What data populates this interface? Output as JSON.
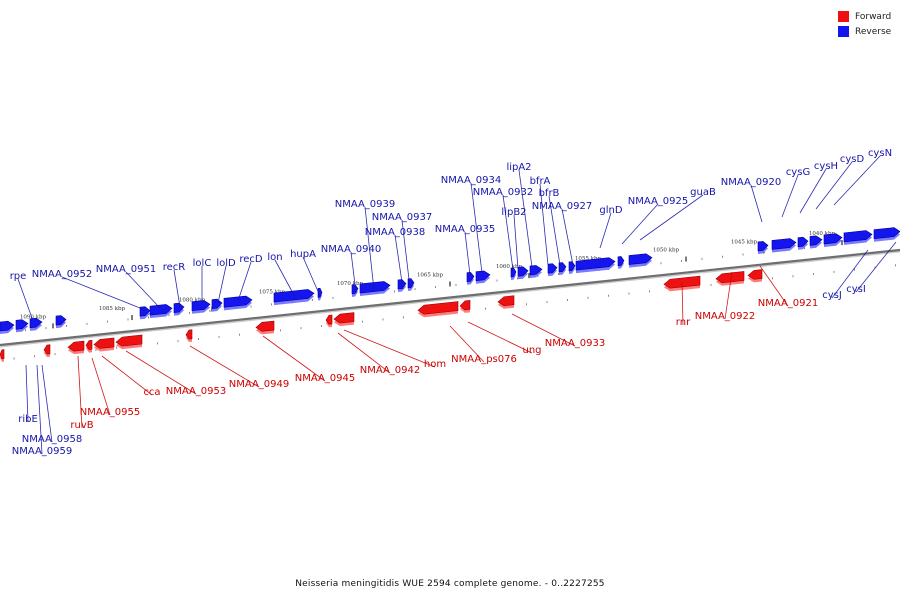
{
  "legend": [
    {
      "label": "Forward",
      "color": "#ee1111"
    },
    {
      "label": "Reverse",
      "color": "#1515ee"
    }
  ],
  "caption": "Neisseria meningitidis WUE 2594 complete genome. - 0..2227255",
  "scale_labels": [
    "1090 kbp",
    "1085 kbp",
    "1080 kbp",
    "1075 kbp",
    "1070 kbp",
    "1065 kbp",
    "1060 kbp",
    "1055 kbp",
    "1050 kbp",
    "1045 kbp",
    "1040 kbp"
  ],
  "reverse_labels": [
    "cysN",
    "cysD",
    "cysH",
    "cysG",
    "NMAA_0920",
    "guaB",
    "NMAA_0925",
    "glnD",
    "NMAA_0927",
    "bfrB",
    "bfrA",
    "lipA2",
    "lipB2",
    "NMAA_0932",
    "NMAA_0934",
    "NMAA_0935",
    "NMAA_0937",
    "NMAA_0938",
    "NMAA_0939",
    "NMAA_0940",
    "hupA",
    "lon",
    "recD",
    "lolD",
    "lolC",
    "recR",
    "NMAA_0951",
    "NMAA_0952",
    "rpe",
    "cysJ",
    "cysI",
    "ribE",
    "NMAA_0958",
    "NMAA_0959"
  ],
  "forward_labels": [
    "NMAA_0921",
    "NMAA_0922",
    "rnr",
    "NMAA_0933",
    "ung",
    "NMAA_ps076",
    "hom",
    "NMAA_0942",
    "NMAA_0945",
    "NMAA_0949",
    "NMAA_0953",
    "cca",
    "NMAA_0955",
    "ruvB"
  ]
}
